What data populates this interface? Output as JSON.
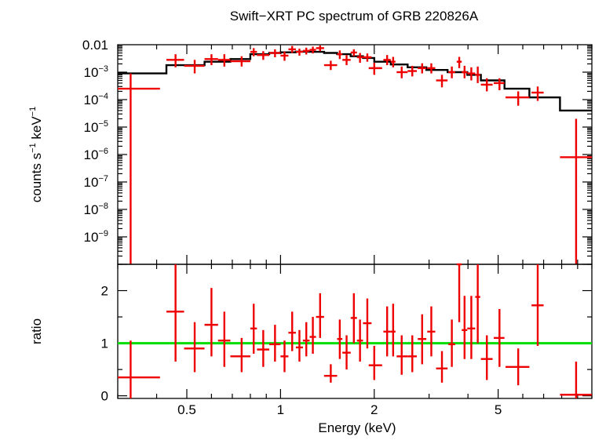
{
  "chart_data": {
    "type": "scatter",
    "title": "Swift−XRT PC spectrum of GRB 220826A",
    "xlabel": "Energy (keV)",
    "x_scale": "log",
    "xlim": [
      0.3,
      10
    ],
    "x_ticks": [
      {
        "value": 0.5,
        "label": "0.5"
      },
      {
        "value": 1,
        "label": "1"
      },
      {
        "value": 2,
        "label": "2"
      },
      {
        "value": 5,
        "label": "5"
      }
    ],
    "colors": {
      "data": "#ee0000",
      "model": "#000000",
      "ratio_line": "#00dd00"
    },
    "panels": [
      {
        "name": "spectrum",
        "ylabel_main": "counts s",
        "ylabel_exp1": "−1",
        "ylabel_mid": " keV",
        "ylabel_exp2": "−1",
        "y_scale": "log",
        "ylim": [
          1e-10,
          0.01
        ],
        "y_ticks": [
          {
            "value": 0.01,
            "base": "0.01",
            "exp": ""
          },
          {
            "value": 0.001,
            "base": "10",
            "exp": "−3"
          },
          {
            "value": 0.0001,
            "base": "10",
            "exp": "−4"
          },
          {
            "value": 1e-05,
            "base": "10",
            "exp": "−5"
          },
          {
            "value": 1e-06,
            "base": "10",
            "exp": "−6"
          },
          {
            "value": 1e-07,
            "base": "10",
            "exp": "−7"
          },
          {
            "value": 1e-08,
            "base": "10",
            "exp": "−8"
          },
          {
            "value": 1e-09,
            "base": "10",
            "exp": "−9"
          }
        ],
        "data": [
          {
            "x": 0.33,
            "xlo": 0.3,
            "xhi": 0.41,
            "y": 0.00025,
            "ylo": 1e-12,
            "yhi": 0.0009
          },
          {
            "x": 0.46,
            "xlo": 0.43,
            "xhi": 0.49,
            "y": 0.0028,
            "ylo": 0.0015,
            "yhi": 0.0045
          },
          {
            "x": 0.53,
            "xlo": 0.49,
            "xhi": 0.57,
            "y": 0.0017,
            "ylo": 0.0009,
            "yhi": 0.0028
          },
          {
            "x": 0.6,
            "xlo": 0.57,
            "xhi": 0.63,
            "y": 0.003,
            "ylo": 0.0018,
            "yhi": 0.0045
          },
          {
            "x": 0.66,
            "xlo": 0.63,
            "xhi": 0.69,
            "y": 0.0028,
            "ylo": 0.0016,
            "yhi": 0.0045
          },
          {
            "x": 0.75,
            "xlo": 0.69,
            "xhi": 0.8,
            "y": 0.0025,
            "ylo": 0.0016,
            "yhi": 0.0038
          },
          {
            "x": 0.82,
            "xlo": 0.8,
            "xhi": 0.84,
            "y": 0.0055,
            "ylo": 0.0038,
            "yhi": 0.0075
          },
          {
            "x": 0.88,
            "xlo": 0.84,
            "xhi": 0.92,
            "y": 0.0042,
            "ylo": 0.0028,
            "yhi": 0.0058
          },
          {
            "x": 0.96,
            "xlo": 0.92,
            "xhi": 1.0,
            "y": 0.005,
            "ylo": 0.0035,
            "yhi": 0.0068
          },
          {
            "x": 1.03,
            "xlo": 1.0,
            "xhi": 1.06,
            "y": 0.004,
            "ylo": 0.0026,
            "yhi": 0.0056
          },
          {
            "x": 1.09,
            "xlo": 1.06,
            "xhi": 1.12,
            "y": 0.0068,
            "ylo": 0.005,
            "yhi": 0.009
          },
          {
            "x": 1.15,
            "xlo": 1.12,
            "xhi": 1.18,
            "y": 0.0055,
            "ylo": 0.004,
            "yhi": 0.0072
          },
          {
            "x": 1.21,
            "xlo": 1.18,
            "xhi": 1.24,
            "y": 0.006,
            "ylo": 0.0044,
            "yhi": 0.0078
          },
          {
            "x": 1.27,
            "xlo": 1.24,
            "xhi": 1.3,
            "y": 0.0065,
            "ylo": 0.0048,
            "yhi": 0.0085
          },
          {
            "x": 1.34,
            "xlo": 1.3,
            "xhi": 1.38,
            "y": 0.0075,
            "ylo": 0.0058,
            "yhi": 0.0094
          },
          {
            "x": 1.45,
            "xlo": 1.38,
            "xhi": 1.52,
            "y": 0.0018,
            "ylo": 0.0012,
            "yhi": 0.0026
          },
          {
            "x": 1.55,
            "xlo": 1.52,
            "xhi": 1.58,
            "y": 0.0045,
            "ylo": 0.003,
            "yhi": 0.0062
          },
          {
            "x": 1.63,
            "xlo": 1.58,
            "xhi": 1.68,
            "y": 0.0028,
            "ylo": 0.0018,
            "yhi": 0.0042
          },
          {
            "x": 1.72,
            "xlo": 1.68,
            "xhi": 1.76,
            "y": 0.0052,
            "ylo": 0.0038,
            "yhi": 0.0068
          },
          {
            "x": 1.8,
            "xlo": 1.76,
            "xhi": 1.84,
            "y": 0.0035,
            "ylo": 0.0022,
            "yhi": 0.005
          },
          {
            "x": 1.9,
            "xlo": 1.84,
            "xhi": 1.96,
            "y": 0.0035,
            "ylo": 0.0024,
            "yhi": 0.0048
          },
          {
            "x": 2.0,
            "xlo": 1.92,
            "xhi": 2.12,
            "y": 0.0014,
            "ylo": 0.0008,
            "yhi": 0.0022
          },
          {
            "x": 2.2,
            "xlo": 2.14,
            "xhi": 2.26,
            "y": 0.0028,
            "ylo": 0.0018,
            "yhi": 0.0042
          },
          {
            "x": 2.3,
            "xlo": 2.26,
            "xhi": 2.34,
            "y": 0.0024,
            "ylo": 0.0015,
            "yhi": 0.0036
          },
          {
            "x": 2.45,
            "xlo": 2.36,
            "xhi": 2.56,
            "y": 0.001,
            "ylo": 0.0006,
            "yhi": 0.0016
          },
          {
            "x": 2.65,
            "xlo": 2.56,
            "xhi": 2.74,
            "y": 0.0011,
            "ylo": 0.0007,
            "yhi": 0.0017
          },
          {
            "x": 2.85,
            "xlo": 2.76,
            "xhi": 2.94,
            "y": 0.0014,
            "ylo": 0.0009,
            "yhi": 0.0021
          },
          {
            "x": 3.05,
            "xlo": 2.96,
            "xhi": 3.14,
            "y": 0.0014,
            "ylo": 0.0009,
            "yhi": 0.0021
          },
          {
            "x": 3.3,
            "xlo": 3.16,
            "xhi": 3.44,
            "y": 0.0005,
            "ylo": 0.00028,
            "yhi": 0.0008
          },
          {
            "x": 3.55,
            "xlo": 3.46,
            "xhi": 3.64,
            "y": 0.001,
            "ylo": 0.0006,
            "yhi": 0.0016
          },
          {
            "x": 3.75,
            "xlo": 3.68,
            "xhi": 3.82,
            "y": 0.0024,
            "ylo": 0.0014,
            "yhi": 0.0036
          },
          {
            "x": 3.9,
            "xlo": 3.82,
            "xhi": 3.98,
            "y": 0.001,
            "ylo": 0.0006,
            "yhi": 0.0017
          },
          {
            "x": 4.1,
            "xlo": 3.98,
            "xhi": 4.22,
            "y": 0.0009,
            "ylo": 0.0005,
            "yhi": 0.0015
          },
          {
            "x": 4.3,
            "xlo": 4.22,
            "xhi": 4.38,
            "y": 0.0008,
            "ylo": 0.0004,
            "yhi": 0.0016
          },
          {
            "x": 4.6,
            "xlo": 4.4,
            "xhi": 4.8,
            "y": 0.00035,
            "ylo": 0.0002,
            "yhi": 0.0006
          },
          {
            "x": 5.05,
            "xlo": 4.84,
            "xhi": 5.24,
            "y": 0.0004,
            "ylo": 0.00022,
            "yhi": 0.0006
          },
          {
            "x": 5.8,
            "xlo": 5.28,
            "xhi": 6.3,
            "y": 0.00012,
            "ylo": 6e-05,
            "yhi": 0.0002
          },
          {
            "x": 6.7,
            "xlo": 6.4,
            "xhi": 7.0,
            "y": 0.00018,
            "ylo": 9e-05,
            "yhi": 0.0003
          },
          {
            "x": 8.9,
            "xlo": 7.9,
            "xhi": 10.0,
            "y": 8e-07,
            "ylo": 1e-12,
            "yhi": 2e-05
          }
        ],
        "model": [
          {
            "x0": 0.3,
            "x1": 0.43,
            "y": 0.0009
          },
          {
            "x0": 0.43,
            "x1": 0.57,
            "y": 0.0018
          },
          {
            "x0": 0.57,
            "x1": 0.69,
            "y": 0.0024
          },
          {
            "x0": 0.69,
            "x1": 0.8,
            "y": 0.003
          },
          {
            "x0": 0.8,
            "x1": 0.92,
            "y": 0.0045
          },
          {
            "x0": 0.92,
            "x1": 1.0,
            "y": 0.005
          },
          {
            "x0": 1.0,
            "x1": 1.12,
            "y": 0.0053
          },
          {
            "x0": 1.12,
            "x1": 1.24,
            "y": 0.0056
          },
          {
            "x0": 1.24,
            "x1": 1.38,
            "y": 0.0055
          },
          {
            "x0": 1.38,
            "x1": 1.52,
            "y": 0.005
          },
          {
            "x0": 1.52,
            "x1": 1.68,
            "y": 0.0045
          },
          {
            "x0": 1.68,
            "x1": 1.84,
            "y": 0.0038
          },
          {
            "x0": 1.84,
            "x1": 2.0,
            "y": 0.0033
          },
          {
            "x0": 2.0,
            "x1": 2.26,
            "y": 0.0024
          },
          {
            "x0": 2.26,
            "x1": 2.56,
            "y": 0.0019
          },
          {
            "x0": 2.56,
            "x1": 2.94,
            "y": 0.0015
          },
          {
            "x0": 2.94,
            "x1": 3.44,
            "y": 0.0012
          },
          {
            "x0": 3.44,
            "x1": 3.98,
            "y": 0.001
          },
          {
            "x0": 3.98,
            "x1": 4.4,
            "y": 0.0008
          },
          {
            "x0": 4.4,
            "x1": 5.24,
            "y": 0.0005
          },
          {
            "x0": 5.24,
            "x1": 6.3,
            "y": 0.00025
          },
          {
            "x0": 6.3,
            "x1": 7.9,
            "y": 0.00012
          },
          {
            "x0": 7.9,
            "x1": 10.0,
            "y": 4e-05
          }
        ]
      },
      {
        "name": "ratio",
        "ylabel_main": "ratio",
        "y_scale": "linear",
        "ylim": [
          -0.05,
          2.5
        ],
        "y_ticks": [
          {
            "value": 0,
            "base": "0"
          },
          {
            "value": 1,
            "base": "1"
          },
          {
            "value": 2,
            "base": "2"
          }
        ],
        "reference_line": 1,
        "data": [
          {
            "x": 0.33,
            "xlo": 0.3,
            "xhi": 0.41,
            "y": 0.35,
            "ylo": -0.1,
            "yhi": 1.05
          },
          {
            "x": 0.46,
            "xlo": 0.43,
            "xhi": 0.49,
            "y": 1.6,
            "ylo": 0.65,
            "yhi": 2.55
          },
          {
            "x": 0.53,
            "xlo": 0.49,
            "xhi": 0.57,
            "y": 0.9,
            "ylo": 0.45,
            "yhi": 1.4
          },
          {
            "x": 0.6,
            "xlo": 0.57,
            "xhi": 0.63,
            "y": 1.35,
            "ylo": 0.75,
            "yhi": 2.05
          },
          {
            "x": 0.66,
            "xlo": 0.63,
            "xhi": 0.69,
            "y": 1.05,
            "ylo": 0.55,
            "yhi": 1.6
          },
          {
            "x": 0.75,
            "xlo": 0.69,
            "xhi": 0.8,
            "y": 0.75,
            "ylo": 0.45,
            "yhi": 1.1
          },
          {
            "x": 0.82,
            "xlo": 0.8,
            "xhi": 0.84,
            "y": 1.28,
            "ylo": 0.8,
            "yhi": 1.75
          },
          {
            "x": 0.88,
            "xlo": 0.84,
            "xhi": 0.92,
            "y": 0.88,
            "ylo": 0.55,
            "yhi": 1.25
          },
          {
            "x": 0.96,
            "xlo": 0.92,
            "xhi": 1.0,
            "y": 0.98,
            "ylo": 0.65,
            "yhi": 1.35
          },
          {
            "x": 1.03,
            "xlo": 1.0,
            "xhi": 1.06,
            "y": 0.75,
            "ylo": 0.45,
            "yhi": 1.05
          },
          {
            "x": 1.09,
            "xlo": 1.06,
            "xhi": 1.12,
            "y": 1.2,
            "ylo": 0.85,
            "yhi": 1.6
          },
          {
            "x": 1.15,
            "xlo": 1.12,
            "xhi": 1.18,
            "y": 0.92,
            "ylo": 0.65,
            "yhi": 1.25
          },
          {
            "x": 1.21,
            "xlo": 1.18,
            "xhi": 1.24,
            "y": 1.05,
            "ylo": 0.75,
            "yhi": 1.4
          },
          {
            "x": 1.27,
            "xlo": 1.24,
            "xhi": 1.3,
            "y": 1.12,
            "ylo": 0.8,
            "yhi": 1.5
          },
          {
            "x": 1.34,
            "xlo": 1.3,
            "xhi": 1.38,
            "y": 1.5,
            "ylo": 1.1,
            "yhi": 1.95
          },
          {
            "x": 1.45,
            "xlo": 1.38,
            "xhi": 1.52,
            "y": 0.38,
            "ylo": 0.25,
            "yhi": 0.6
          },
          {
            "x": 1.55,
            "xlo": 1.52,
            "xhi": 1.58,
            "y": 1.08,
            "ylo": 0.7,
            "yhi": 1.45
          },
          {
            "x": 1.63,
            "xlo": 1.58,
            "xhi": 1.68,
            "y": 0.82,
            "ylo": 0.5,
            "yhi": 1.15
          },
          {
            "x": 1.72,
            "xlo": 1.68,
            "xhi": 1.76,
            "y": 1.48,
            "ylo": 1.0,
            "yhi": 1.95
          },
          {
            "x": 1.8,
            "xlo": 1.76,
            "xhi": 1.84,
            "y": 1.05,
            "ylo": 0.65,
            "yhi": 1.45
          },
          {
            "x": 1.9,
            "xlo": 1.84,
            "xhi": 1.96,
            "y": 1.38,
            "ylo": 0.9,
            "yhi": 1.85
          },
          {
            "x": 2.0,
            "xlo": 1.92,
            "xhi": 2.12,
            "y": 0.58,
            "ylo": 0.3,
            "yhi": 0.95
          },
          {
            "x": 2.2,
            "xlo": 2.14,
            "xhi": 2.26,
            "y": 1.22,
            "ylo": 0.75,
            "yhi": 1.7
          },
          {
            "x": 2.3,
            "xlo": 2.26,
            "xhi": 2.34,
            "y": 1.22,
            "ylo": 0.75,
            "yhi": 1.75
          },
          {
            "x": 2.45,
            "xlo": 2.36,
            "xhi": 2.56,
            "y": 0.75,
            "ylo": 0.4,
            "yhi": 1.15
          },
          {
            "x": 2.65,
            "xlo": 2.56,
            "xhi": 2.74,
            "y": 0.75,
            "ylo": 0.45,
            "yhi": 1.15
          },
          {
            "x": 2.85,
            "xlo": 2.76,
            "xhi": 2.94,
            "y": 1.08,
            "ylo": 0.6,
            "yhi": 1.55
          },
          {
            "x": 3.05,
            "xlo": 2.96,
            "xhi": 3.14,
            "y": 1.22,
            "ylo": 0.75,
            "yhi": 1.7
          },
          {
            "x": 3.3,
            "xlo": 3.16,
            "xhi": 3.44,
            "y": 0.52,
            "ylo": 0.25,
            "yhi": 0.85
          },
          {
            "x": 3.55,
            "xlo": 3.46,
            "xhi": 3.64,
            "y": 0.98,
            "ylo": 0.55,
            "yhi": 1.45
          },
          {
            "x": 3.75,
            "xlo": 3.68,
            "xhi": 3.82,
            "y": 2.5,
            "ylo": 1.4,
            "yhi": 2.55
          },
          {
            "x": 3.9,
            "xlo": 3.82,
            "xhi": 3.98,
            "y": 1.25,
            "ylo": 0.7,
            "yhi": 1.9
          },
          {
            "x": 4.1,
            "xlo": 3.98,
            "xhi": 4.22,
            "y": 1.28,
            "ylo": 0.7,
            "yhi": 1.9
          },
          {
            "x": 4.3,
            "xlo": 4.22,
            "xhi": 4.38,
            "y": 1.88,
            "ylo": 1.0,
            "yhi": 2.55
          },
          {
            "x": 4.6,
            "xlo": 4.4,
            "xhi": 4.8,
            "y": 0.7,
            "ylo": 0.3,
            "yhi": 1.15
          },
          {
            "x": 5.05,
            "xlo": 4.84,
            "xhi": 5.24,
            "y": 1.1,
            "ylo": 0.55,
            "yhi": 1.65
          },
          {
            "x": 5.8,
            "xlo": 5.28,
            "xhi": 6.3,
            "y": 0.55,
            "ylo": 0.2,
            "yhi": 0.9
          },
          {
            "x": 6.7,
            "xlo": 6.4,
            "xhi": 7.0,
            "y": 1.72,
            "ylo": 0.95,
            "yhi": 2.5
          },
          {
            "x": 8.9,
            "xlo": 7.9,
            "xhi": 10.0,
            "y": 0.02,
            "ylo": -0.05,
            "yhi": 0.65
          }
        ]
      }
    ]
  }
}
